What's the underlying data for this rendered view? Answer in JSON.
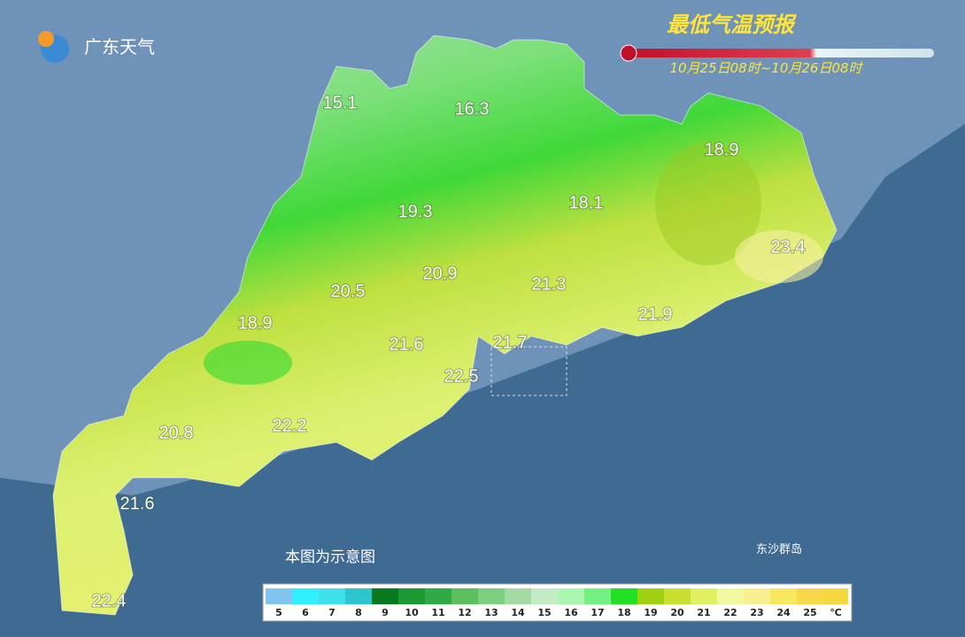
{
  "header": {
    "logo": "广东天气",
    "title": "最低气温预报",
    "period": "10月25日08时~10月26日08时"
  },
  "map": {
    "labels": [
      15.1,
      16.3,
      18.9,
      19.3,
      18.1,
      23.4,
      20.5,
      20.9,
      21.3,
      18.9,
      21.9,
      21.6,
      21.7,
      22.5,
      20.8,
      22.2,
      21.6,
      22.4
    ],
    "note": "本图为示意图",
    "island": "东沙群岛"
  },
  "legend": {
    "items": [
      {
        "value": 5,
        "color": "#80c4f0"
      },
      {
        "value": 6,
        "color": "#30f0ff"
      },
      {
        "value": 7,
        "color": "#3ee0ec"
      },
      {
        "value": 8,
        "color": "#2cc6cc"
      },
      {
        "value": 9,
        "color": "#0a7a20"
      },
      {
        "value": 10,
        "color": "#1a9a30"
      },
      {
        "value": 11,
        "color": "#30aa44"
      },
      {
        "value": 12,
        "color": "#5cbe5c"
      },
      {
        "value": 13,
        "color": "#7ece80"
      },
      {
        "value": 14,
        "color": "#a2dca2"
      },
      {
        "value": 15,
        "color": "#c4ecc4"
      },
      {
        "value": 16,
        "color": "#a8f6b0"
      },
      {
        "value": 17,
        "color": "#72f080"
      },
      {
        "value": 18,
        "color": "#22e022"
      },
      {
        "value": 19,
        "color": "#a0d010"
      },
      {
        "value": 20,
        "color": "#c8e030"
      },
      {
        "value": 21,
        "color": "#e0f060"
      },
      {
        "value": 22,
        "color": "#f0f8a0"
      },
      {
        "value": 23,
        "color": "#f8f090"
      },
      {
        "value": 24,
        "color": "#f8e860"
      },
      {
        "value": 25,
        "color": "#f6d848"
      }
    ],
    "unit": "℃"
  }
}
